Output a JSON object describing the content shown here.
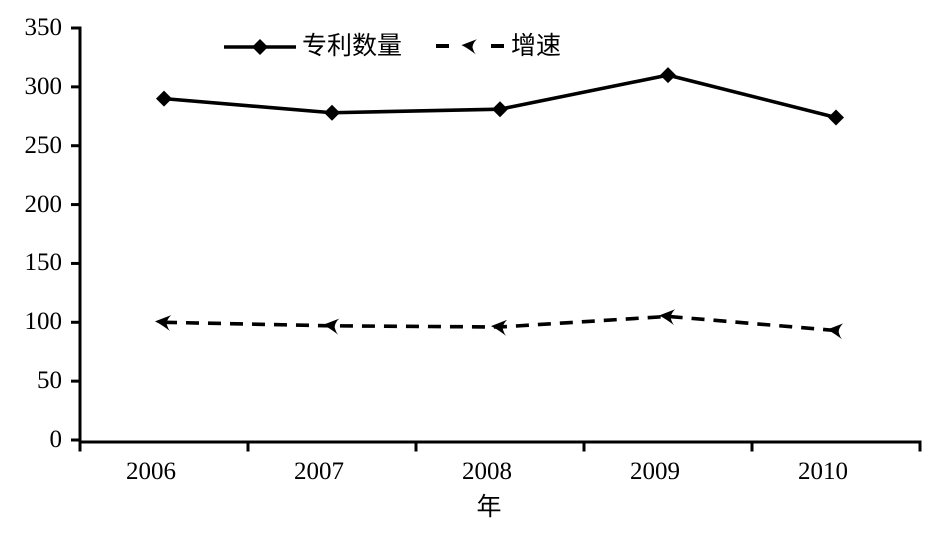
{
  "chart_data": {
    "type": "line",
    "title": "",
    "xlabel": "年",
    "ylabel": "",
    "categories": [
      "2006",
      "2007",
      "2008",
      "2009",
      "2010"
    ],
    "series": [
      {
        "name": "专利数量",
        "values": [
          290,
          278,
          281,
          310,
          274
        ],
        "line_style": "solid",
        "marker": "diamond",
        "color": "#000000"
      },
      {
        "name": "增速",
        "values": [
          100,
          97,
          96,
          105,
          93
        ],
        "line_style": "dashed",
        "marker": "triangle",
        "color": "#000000"
      }
    ],
    "ylim": [
      0,
      350
    ],
    "yticks": [
      0,
      50,
      100,
      150,
      200,
      250,
      300,
      350
    ],
    "grid": false,
    "legend_position": "top-center",
    "background": "#ffffff",
    "text_color": "#000000"
  }
}
